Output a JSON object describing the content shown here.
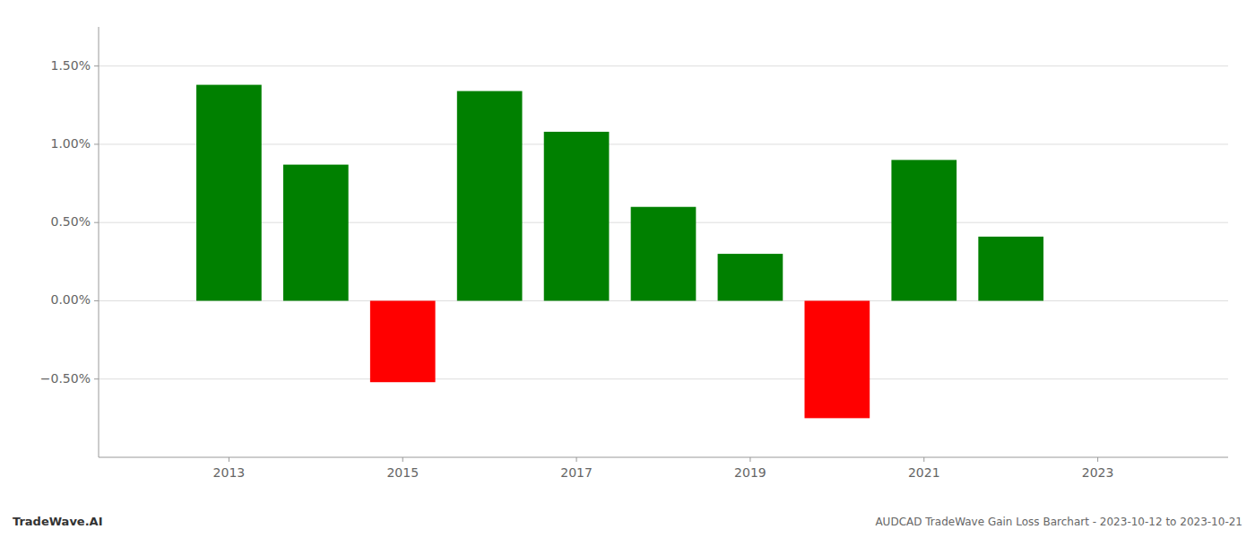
{
  "chart_data": {
    "type": "bar",
    "title": "AUDCAD TradeWave Gain Loss Barchart - 2023-10-12 to 2023-10-21",
    "annotations": [
      "TradeWave.AI"
    ],
    "x": [
      2013,
      2014,
      2015,
      2016,
      2017,
      2018,
      2019,
      2020,
      2021,
      2022
    ],
    "values": [
      1.38,
      0.87,
      -0.52,
      1.34,
      1.08,
      0.6,
      0.3,
      -0.75,
      0.9,
      0.41
    ],
    "colors": [
      "#008000",
      "#008000",
      "#ff0000",
      "#008000",
      "#008000",
      "#008000",
      "#008000",
      "#ff0000",
      "#008000",
      "#008000"
    ],
    "xlim": [
      2011.5,
      2024.5
    ],
    "ylim": [
      -1.0,
      1.75
    ],
    "xticks": [
      2013,
      2015,
      2017,
      2019,
      2021,
      2023
    ],
    "yticks": [
      {
        "value": -0.5,
        "label": "−0.50%"
      },
      {
        "value": 0.0,
        "label": "0.00%"
      },
      {
        "value": 0.5,
        "label": "0.50%"
      },
      {
        "value": 1.0,
        "label": "1.00%"
      },
      {
        "value": 1.5,
        "label": "1.50%"
      }
    ],
    "grid": true
  }
}
